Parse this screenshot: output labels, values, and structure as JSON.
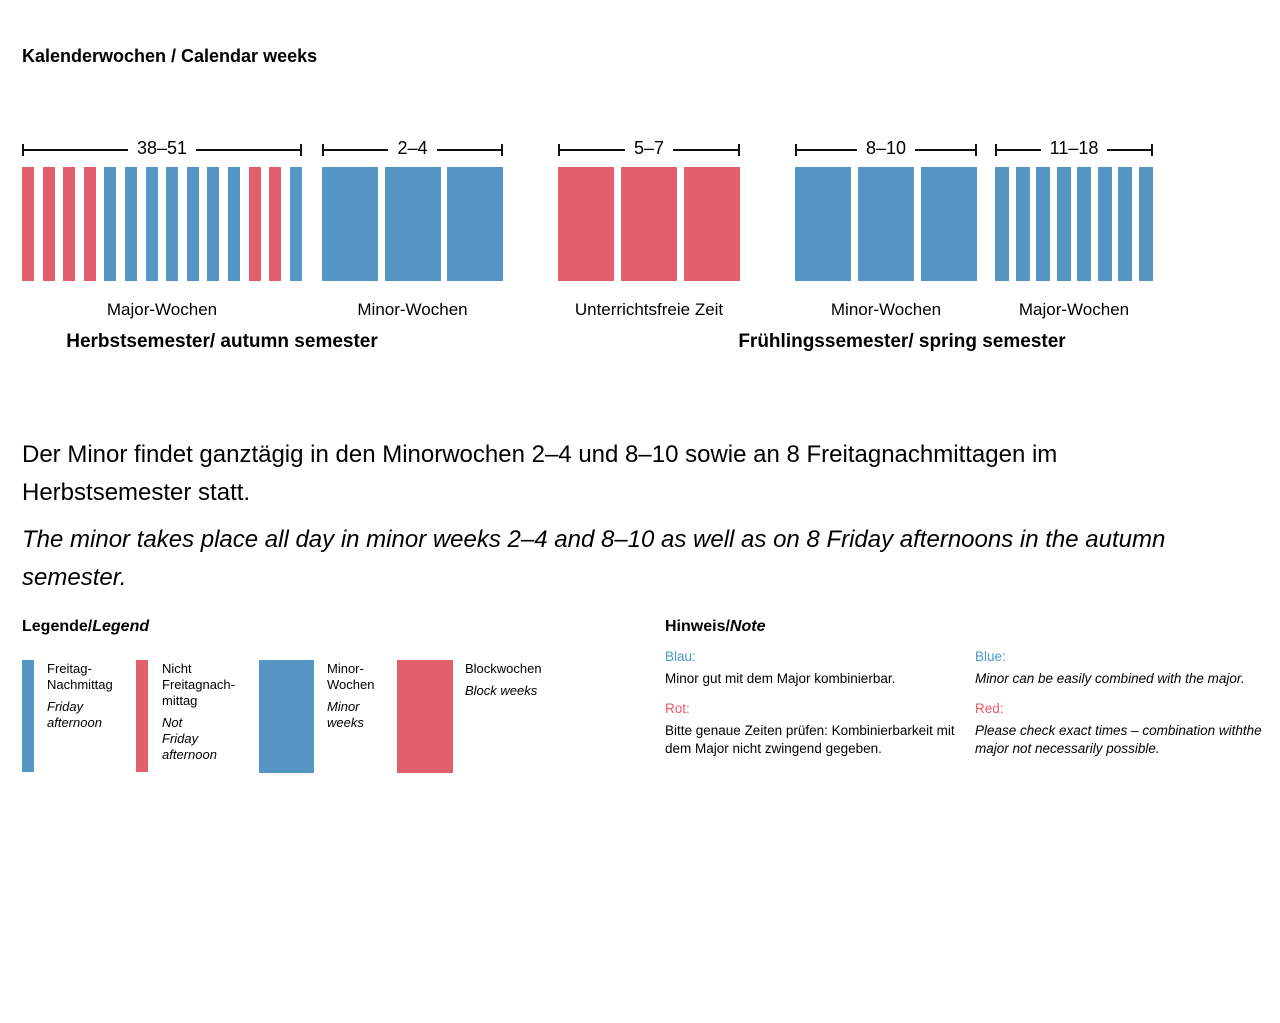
{
  "title": "Kalenderwochen / Calendar weeks",
  "colors": {
    "bar_blue": "#5596c5",
    "bar_red": "#e25f6e",
    "note_blue": "#4a96ca",
    "note_red": "#ef5767"
  },
  "chart_data": {
    "type": "timeline-bars",
    "groups": [
      {
        "weeks_label": "38–51",
        "style": "thin",
        "caption": "Major-Wochen",
        "bars": [
          "red",
          "red",
          "red",
          "red",
          "blue",
          "blue",
          "blue",
          "blue",
          "blue",
          "blue",
          "blue",
          "red",
          "red",
          "blue"
        ]
      },
      {
        "weeks_label": "2–4",
        "style": "wide",
        "caption": "Minor-Wochen",
        "bars": [
          "blue",
          "blue",
          "blue"
        ]
      },
      {
        "weeks_label": "5–7",
        "style": "wide",
        "caption": "Unterrichtsfreie Zeit",
        "bars": [
          "red",
          "red",
          "red"
        ]
      },
      {
        "weeks_label": "8–10",
        "style": "wide",
        "caption": "Minor-Wochen",
        "bars": [
          "blue",
          "blue",
          "blue"
        ]
      },
      {
        "weeks_label": "11–18",
        "style": "thin",
        "caption": "Major-Wochen",
        "bars": [
          "blue",
          "blue",
          "blue",
          "blue",
          "blue",
          "blue",
          "blue",
          "blue"
        ]
      }
    ],
    "semester_titles": [
      "Herbstsemester/ autumn semester",
      "Frühlingssemester/ spring semester"
    ]
  },
  "paragraphs": {
    "german": "Der Minor findet ganztägig in den Minorwochen 2–4 und 8–10 sowie an 8 Freitagnachmittagen im Herbstsemester statt.",
    "english": "The minor takes place all day in minor weeks 2–4 and 8–10 as well as on 8 Friday afternoons in the autumn semester."
  },
  "legend": {
    "title_de": "Legende/",
    "title_en": "Legend",
    "items": [
      {
        "swatch": "thin",
        "color": "blue",
        "label_de": "Freitag-\nNachmittag",
        "label_en": "Friday\nafternoon"
      },
      {
        "swatch": "thin",
        "color": "red",
        "label_de": "Nicht\nFreitagnach-\nmittag",
        "label_en": "Not\nFriday\nafternoon"
      },
      {
        "swatch": "wide",
        "color": "blue",
        "label_de": "Minor-\nWochen",
        "label_en": "Minor\nweeks"
      },
      {
        "swatch": "wide",
        "color": "red",
        "label_de": "Blockwochen",
        "label_en": "Block weeks"
      }
    ]
  },
  "note": {
    "title_de": "Hinweis/",
    "title_en": "Note",
    "de": {
      "blue_label": "Blau:",
      "blue_text": "Minor gut mit dem Major kombinierbar.",
      "red_label": "Rot:",
      "red_text": "Bitte genaue Zeiten prüfen: Kombinierbarkeit mit dem Major nicht zwingend gegeben."
    },
    "en": {
      "blue_label": "Blue:",
      "blue_text": "Minor can be easily combined with the major.",
      "red_label": "Red:",
      "red_text": "Please check exact times – combination withthe major not necessarily possible."
    }
  }
}
